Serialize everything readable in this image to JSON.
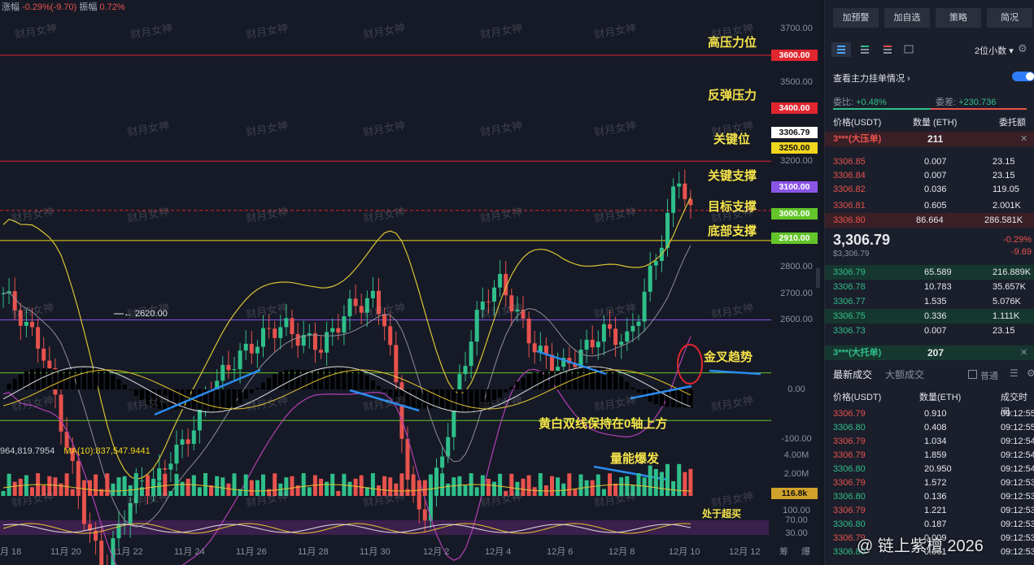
{
  "header": {
    "change_label": "涨幅",
    "change_value": "-0.29%(-9.70)",
    "amp_label": "振幅",
    "amp_value": "0.72%"
  },
  "watermark": "财月女神",
  "price_axis": [
    "3700.00",
    "3600.00",
    "3500.00",
    "3400.00",
    "3300.00",
    "3200.00",
    "3100.00",
    "3000.00",
    "2900.00",
    "2800.00",
    "2700.00",
    "2600.00"
  ],
  "price_tags": [
    {
      "label": "3600.00",
      "color": "#e0262f"
    },
    {
      "label": "3400.00",
      "color": "#e0262f"
    },
    {
      "label": "3306.79",
      "color": "#ffffff"
    },
    {
      "label": "3250.00",
      "color": "#f0d51e"
    },
    {
      "label": "3100.00",
      "color": "#8a55e6"
    },
    {
      "label": "3000.00",
      "color": "#63c52a"
    },
    {
      "label": "2910.00",
      "color": "#63c52a"
    }
  ],
  "annotations": {
    "high_pressure": "高压力位",
    "rebound_pressure": "反弹压力",
    "key_level": "关键位",
    "key_support": "关键支撑",
    "target_support": "目标支撑",
    "bottom_support": "底部支撑",
    "golden_cross": "金叉趋势",
    "macd_note": "黄白双线保持在0轴上方",
    "volume_burst": "量能爆发",
    "overbought": "处于超买",
    "low_marker": "← 2620.00"
  },
  "macd_axis": [
    "0.00",
    "-100.00"
  ],
  "volume": {
    "left_value": "964,819.7954",
    "ma_label": "MA(10):837,547.9441",
    "axis": [
      "4.00M",
      "2.00M"
    ],
    "current_tag": "116.8k"
  },
  "rsi_axis": [
    "100.00",
    "70.00",
    "30.00"
  ],
  "x_axis": [
    "月 18",
    "11月 20",
    "11月 22",
    "11月 24",
    "11月 26",
    "11月 28",
    "11月 30",
    "12月 2",
    "12月 4",
    "12月 6",
    "12月 8",
    "12月 10",
    "12月 12"
  ],
  "bottom_right": {
    "left": "筹",
    "right": "爆"
  },
  "signature": "@ 链上紫檀 2026",
  "panel": {
    "buttons": [
      "加预警",
      "加自选",
      "策略",
      "简况"
    ],
    "decimals": "2位小数",
    "pending_title": "查看主力挂单情况",
    "ratio_label": "委比:",
    "ratio_value": "+0.48%",
    "diff_label": "委差:",
    "diff_value": "+230.736",
    "ob_headers": [
      "价格(USDT)",
      "数量 (ETH)",
      "委托额"
    ],
    "big_sell": {
      "label": "3***(大压单)",
      "qty": "211"
    },
    "asks": [
      {
        "price": "3306.85",
        "qty": "0.007",
        "amt": "23.15"
      },
      {
        "price": "3306.84",
        "qty": "0.007",
        "amt": "23.15"
      },
      {
        "price": "3306.82",
        "qty": "0.036",
        "amt": "119.05"
      },
      {
        "price": "3306.81",
        "qty": "0.605",
        "amt": "2.001K"
      },
      {
        "price": "3306.80",
        "qty": "86.664",
        "amt": "286.581K"
      }
    ],
    "last_price": "3,306.79",
    "last_usd": "$3,306.79",
    "last_change_pct": "-0.29%",
    "last_change": "-9.69",
    "bids": [
      {
        "price": "3306.79",
        "qty": "65.589",
        "amt": "216.889K"
      },
      {
        "price": "3306.78",
        "qty": "10.783",
        "amt": "35.657K"
      },
      {
        "price": "3306.77",
        "qty": "1.535",
        "amt": "5.076K"
      },
      {
        "price": "3306.75",
        "qty": "0.336",
        "amt": "1.111K"
      },
      {
        "price": "3306.73",
        "qty": "0.007",
        "amt": "23.15"
      }
    ],
    "big_buy": {
      "label": "3***(大托单)",
      "qty": "207"
    },
    "trades_tab": "最新成交",
    "big_trades_tab": "大额成交",
    "normal_label": "普通",
    "trade_headers": [
      "价格(USDT)",
      "数量(ETH)",
      "成交时间"
    ],
    "trades": [
      {
        "price": "3306.79",
        "qty": "0.910",
        "time": "09:12:55",
        "side": "red"
      },
      {
        "price": "3306.80",
        "qty": "0.408",
        "time": "09:12:55",
        "side": "green"
      },
      {
        "price": "3306.79",
        "qty": "1.034",
        "time": "09:12:54",
        "side": "red"
      },
      {
        "price": "3306.79",
        "qty": "1.859",
        "time": "09:12:54",
        "side": "red"
      },
      {
        "price": "3306.80",
        "qty": "20.950",
        "time": "09:12:54",
        "side": "green"
      },
      {
        "price": "3306.79",
        "qty": "1.572",
        "time": "09:12:53",
        "side": "red"
      },
      {
        "price": "3306.80",
        "qty": "0.136",
        "time": "09:12:53",
        "side": "green"
      },
      {
        "price": "3306.79",
        "qty": "1.221",
        "time": "09:12:53",
        "side": "red"
      },
      {
        "price": "3306.80",
        "qty": "0.187",
        "time": "09:12:53",
        "side": "green"
      },
      {
        "price": "3306.79",
        "qty": "0.009",
        "time": "09:12:53",
        "side": "red"
      },
      {
        "price": "3306.80",
        "qty": "0.061",
        "time": "09:12:53",
        "side": "green"
      }
    ]
  }
}
